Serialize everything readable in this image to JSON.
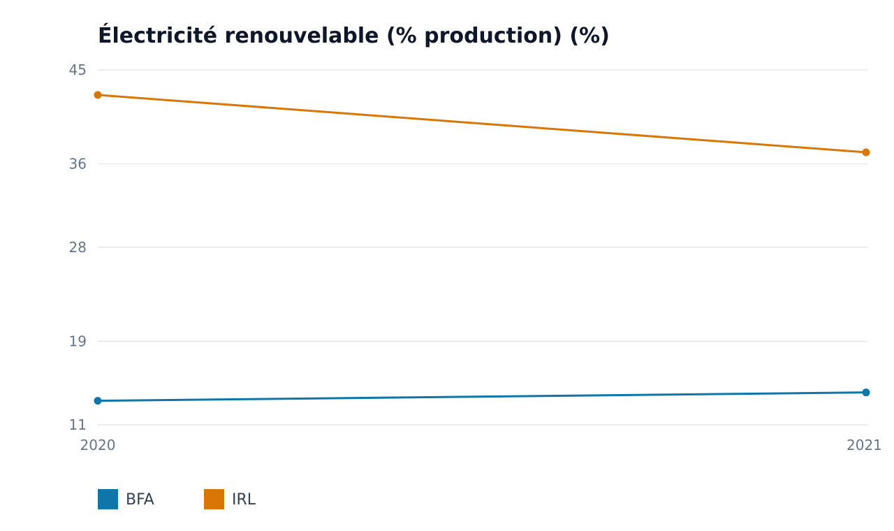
{
  "chart_data": {
    "type": "line",
    "title": "Électricité renouvelable (% production) (%)",
    "xlabel": "",
    "ylabel": "",
    "x": [
      "2020",
      "2021"
    ],
    "yticks": [
      11,
      19,
      28,
      36,
      45
    ],
    "ylim": [
      11,
      45
    ],
    "grid": true,
    "legend_position": "bottom-left",
    "series": [
      {
        "name": "BFA",
        "color": "#0e76a8",
        "values": [
          13.3,
          14.1
        ]
      },
      {
        "name": "IRL",
        "color": "#d97706",
        "values": [
          42.6,
          37.1
        ]
      }
    ]
  }
}
